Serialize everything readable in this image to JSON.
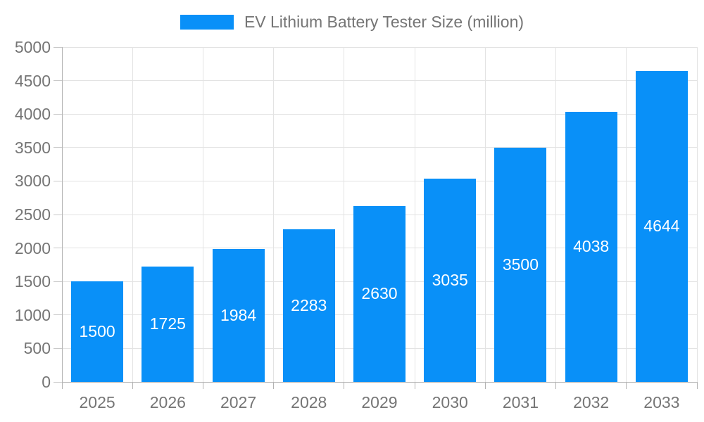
{
  "chart_data": {
    "type": "bar",
    "title": "",
    "categories": [
      "2025",
      "2026",
      "2027",
      "2028",
      "2029",
      "2030",
      "2031",
      "2032",
      "2033"
    ],
    "values": [
      1500,
      1725,
      1984,
      2283,
      2630,
      3035,
      3500,
      4038,
      4644
    ],
    "series_name": "EV Lithium Battery Tester Size (million)",
    "xlabel": "",
    "ylabel": "",
    "ylim": [
      0,
      5000
    ],
    "ytick_step": 500,
    "ytick_labels": [
      "0",
      "500",
      "1000",
      "1500",
      "2000",
      "2500",
      "3000",
      "3500",
      "4000",
      "4500",
      "5000"
    ],
    "legend_position": "top-center",
    "grid": true,
    "bar_color": "#0990f8",
    "value_label_color": "#ffffff",
    "axis_text_color": "#757575",
    "gridline_color": "#e3e3e3",
    "axis_line_color": "#b3b3b3"
  }
}
